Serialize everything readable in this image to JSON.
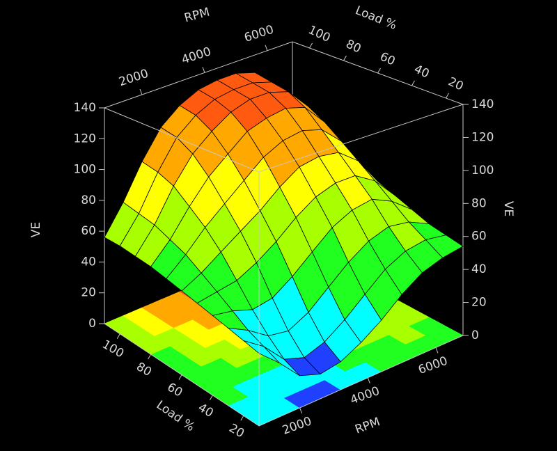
{
  "chart_data": {
    "type": "surface3d",
    "x_label": "RPM",
    "y_label": "Load %",
    "z_label": "VE",
    "x": [
      800,
      1400,
      2000,
      2600,
      3200,
      3800,
      4400,
      5000,
      5600,
      6200,
      6800
    ],
    "y": [
      10,
      20,
      30,
      40,
      50,
      60,
      70,
      80,
      90,
      100,
      110
    ],
    "z": [
      [
        40,
        30,
        18,
        14,
        16,
        22,
        30,
        40,
        48,
        52,
        54
      ],
      [
        42,
        34,
        22,
        18,
        22,
        30,
        40,
        50,
        56,
        58,
        56
      ],
      [
        44,
        38,
        30,
        28,
        34,
        44,
        54,
        62,
        66,
        64,
        58
      ],
      [
        46,
        44,
        40,
        42,
        50,
        60,
        70,
        76,
        78,
        72,
        62
      ],
      [
        48,
        50,
        52,
        58,
        66,
        76,
        84,
        88,
        88,
        80,
        66
      ],
      [
        50,
        56,
        64,
        72,
        80,
        90,
        98,
        100,
        98,
        88,
        70
      ],
      [
        52,
        62,
        74,
        84,
        94,
        104,
        110,
        112,
        108,
        96,
        74
      ],
      [
        54,
        66,
        82,
        96,
        106,
        116,
        120,
        122,
        118,
        104,
        78
      ],
      [
        55,
        70,
        90,
        106,
        116,
        124,
        128,
        128,
        124,
        110,
        80
      ],
      [
        56,
        72,
        94,
        112,
        122,
        128,
        130,
        130,
        126,
        112,
        82
      ],
      [
        56,
        74,
        96,
        114,
        124,
        130,
        132,
        132,
        128,
        114,
        84
      ]
    ],
    "xlim": [
      800,
      6800
    ],
    "ylim": [
      10,
      110
    ],
    "zlim": [
      0,
      140
    ],
    "xticks": [
      2000,
      4000,
      6000
    ],
    "yticks": [
      20,
      40,
      60,
      80,
      100
    ],
    "zticks": [
      0,
      20,
      40,
      60,
      80,
      100,
      120,
      140
    ],
    "colors": [
      "#2040ff",
      "#00ffff",
      "#20ff20",
      "#a8ff00",
      "#ffff00",
      "#ffa800",
      "#ff5a10"
    ],
    "floor_contour": true
  }
}
